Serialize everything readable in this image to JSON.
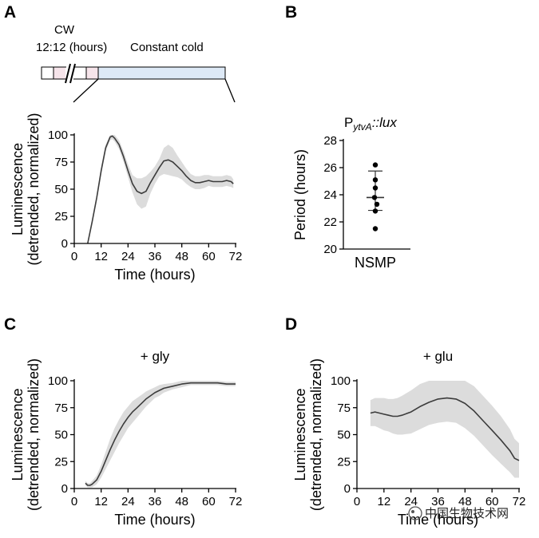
{
  "panels": {
    "a": "A",
    "b": "B",
    "c": "C",
    "d": "D"
  },
  "schematic": {
    "cw_label": "CW",
    "cycle_label": "12:12 (hours)",
    "constant_label": "Constant cold"
  },
  "colors": {
    "line": "#3c3c3c",
    "band": "#dcdcdc",
    "axis": "#000000",
    "schematic_fill": "#dde9f6",
    "schematic_pink": "#f6e4ea"
  },
  "watermark": "中国生物技术网",
  "chart_data": [
    {
      "id": "A",
      "type": "line",
      "title": "",
      "xlabel": "Time (hours)",
      "ylabel_line1": "Luminescence",
      "ylabel_line2": "(detrended, normalized)",
      "xlim": [
        0,
        72
      ],
      "ylim": [
        0,
        100
      ],
      "xticks": [
        0,
        12,
        24,
        36,
        48,
        60,
        72
      ],
      "yticks": [
        0,
        25,
        50,
        75,
        100
      ],
      "series": [
        {
          "name": "mean",
          "x": [
            6,
            8,
            10,
            12,
            14,
            16,
            17,
            18,
            20,
            22,
            24,
            26,
            28,
            30,
            32,
            34,
            36,
            38,
            40,
            42,
            44,
            46,
            48,
            50,
            52,
            54,
            56,
            58,
            60,
            62,
            64,
            66,
            68,
            70,
            71
          ],
          "y": [
            0,
            20,
            42,
            67,
            88,
            98,
            99,
            97,
            91,
            80,
            67,
            55,
            48,
            46,
            48,
            56,
            63,
            70,
            76,
            77,
            75,
            71,
            67,
            62,
            58,
            56,
            56,
            57,
            58,
            57,
            57,
            57,
            58,
            57,
            55
          ],
          "band": [
            0,
            2,
            3,
            4,
            3,
            3,
            3,
            3,
            4,
            5,
            6,
            8,
            12,
            14,
            14,
            10,
            8,
            8,
            12,
            14,
            13,
            10,
            8,
            7,
            6,
            6,
            6,
            6,
            5,
            5,
            5,
            5,
            5,
            5,
            4
          ]
        }
      ]
    },
    {
      "id": "B",
      "type": "scatter",
      "title": "PytvA::lux",
      "title_main": "P",
      "title_sub": "ytvA",
      "title_rest": "::lux",
      "xlabel": "NSMP",
      "ylabel": "Period (hours)",
      "ylim": [
        20,
        28
      ],
      "yticks": [
        20,
        22,
        24,
        26,
        28
      ],
      "points": [
        26.2,
        25.1,
        24.5,
        23.8,
        23.3,
        22.8,
        21.5
      ],
      "mean": 23.8,
      "sd_upper": 25.75,
      "sd_lower": 22.85
    },
    {
      "id": "C",
      "type": "line",
      "title": "+ gly",
      "xlabel": "Time (hours)",
      "ylabel_line1": "Luminescence",
      "ylabel_line2": "(detrended, normalized)",
      "xlim": [
        0,
        72
      ],
      "ylim": [
        0,
        100
      ],
      "xticks": [
        0,
        12,
        24,
        36,
        48,
        60,
        72
      ],
      "yticks": [
        0,
        25,
        50,
        75,
        100
      ],
      "series": [
        {
          "name": "mean",
          "x": [
            5,
            6,
            7,
            8,
            10,
            12,
            14,
            16,
            18,
            20,
            22,
            24,
            26,
            28,
            30,
            32,
            34,
            36,
            38,
            40,
            44,
            48,
            52,
            56,
            60,
            64,
            68,
            72
          ],
          "y": [
            5,
            3,
            3,
            4,
            8,
            16,
            26,
            36,
            45,
            53,
            60,
            66,
            71,
            75,
            79,
            83,
            86,
            89,
            91,
            93,
            95,
            97,
            98,
            98,
            98,
            98,
            97,
            97
          ],
          "band": [
            2,
            2,
            2,
            3,
            4,
            6,
            8,
            10,
            11,
            11,
            11,
            10,
            10,
            9,
            8,
            7,
            6,
            5,
            5,
            4,
            3,
            3,
            2,
            2,
            2,
            2,
            2,
            2
          ]
        }
      ]
    },
    {
      "id": "D",
      "type": "line",
      "title": "+ glu",
      "xlabel": "Time (hours)",
      "ylabel_line1": "Luminescence",
      "ylabel_line2": "(detrended, normalized)",
      "xlim": [
        0,
        72
      ],
      "ylim": [
        0,
        100
      ],
      "xticks": [
        0,
        12,
        24,
        36,
        48,
        60,
        72
      ],
      "yticks": [
        0,
        25,
        50,
        75,
        100
      ],
      "series": [
        {
          "name": "mean",
          "x": [
            6,
            8,
            10,
            12,
            14,
            16,
            18,
            20,
            24,
            28,
            32,
            36,
            40,
            44,
            48,
            52,
            56,
            60,
            64,
            68,
            70,
            72
          ],
          "y": [
            70,
            71,
            70,
            69,
            68,
            67,
            67,
            68,
            71,
            76,
            80,
            83,
            84,
            83,
            79,
            72,
            63,
            54,
            45,
            35,
            28,
            26
          ],
          "band": [
            12,
            13,
            14,
            15,
            15,
            16,
            17,
            18,
            20,
            21,
            21,
            22,
            22,
            22,
            23,
            23,
            23,
            23,
            22,
            20,
            18,
            16
          ]
        }
      ]
    }
  ]
}
